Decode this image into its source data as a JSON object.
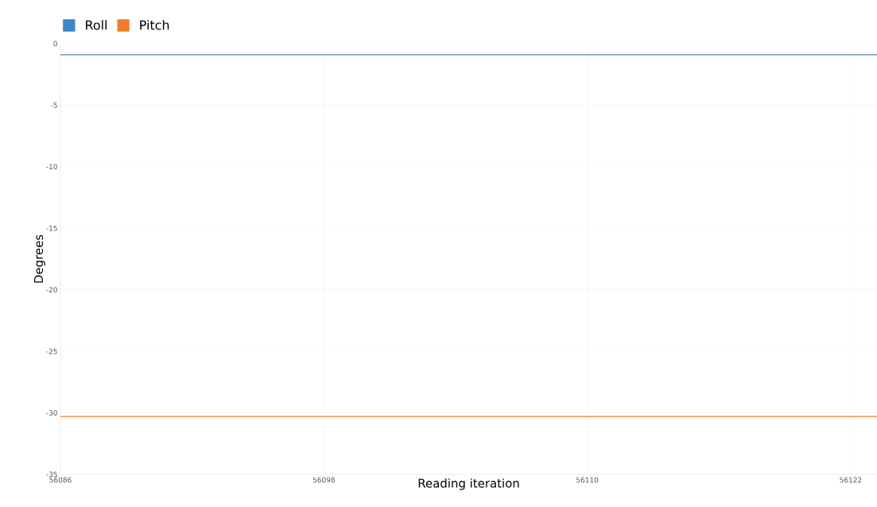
{
  "chart_data": {
    "type": "line",
    "xlabel": "Reading iteration",
    "ylabel": "Degrees",
    "x": [
      56086,
      56123.2
    ],
    "series": [
      {
        "name": "Roll",
        "color": "#3f86c4",
        "values": [
          -0.9,
          -0.9
        ]
      },
      {
        "name": "Pitch",
        "color": "#f07d2a",
        "values": [
          -30.3,
          -30.3
        ]
      }
    ],
    "xlim": [
      56086,
      56123.2
    ],
    "ylim": [
      -35,
      0
    ],
    "xticks": [
      56086,
      56098,
      56110,
      56122
    ],
    "yticks": [
      -35,
      -30,
      -25,
      -20,
      -15,
      -10,
      -5,
      0
    ],
    "grid": true,
    "legend": "top left",
    "marker": "none",
    "line_style": "solid"
  }
}
